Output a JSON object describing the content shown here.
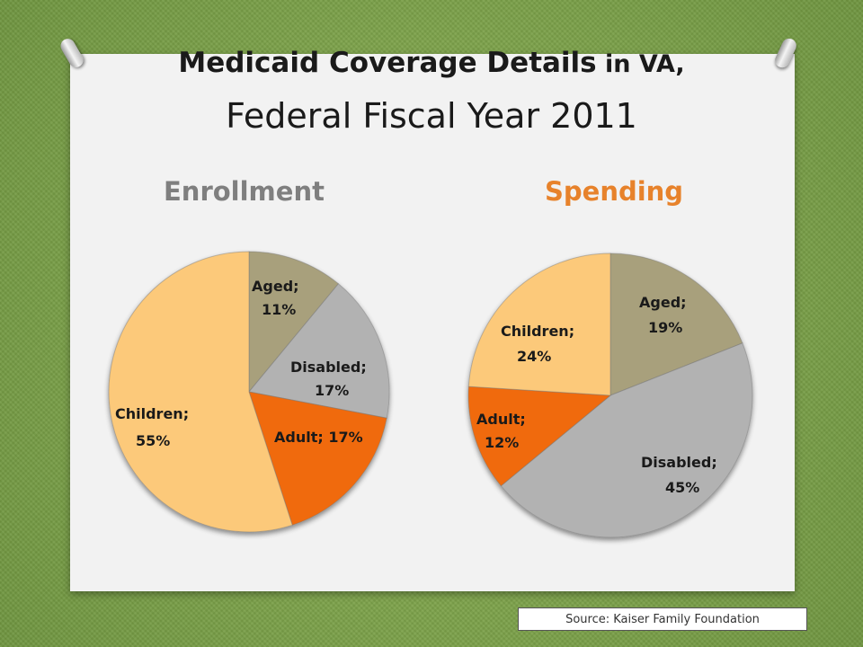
{
  "title": {
    "line1_bold": "Medicaid Coverage Details",
    "line1_small": " in VA,",
    "line2": "Federal Fiscal Year 2011"
  },
  "source": "Source: Kaiser Family Foundation",
  "colors": {
    "aged": "#a8a07c",
    "disabled": "#b2b2b2",
    "adult": "#f06a0a",
    "children": "#fcc97a",
    "enrollment_title": "#7f7f7f",
    "spending_title": "#e7822b"
  },
  "chart_data": [
    {
      "type": "pie",
      "title": "Enrollment",
      "slices": [
        {
          "label": "Aged",
          "value": 11,
          "text_line1": "Aged;",
          "text_line2": "11%",
          "color": "#a8a07c"
        },
        {
          "label": "Disabled",
          "value": 17,
          "text_line1": "Disabled;",
          "text_line2": "17%",
          "color": "#b2b2b2"
        },
        {
          "label": "Adult",
          "value": 17,
          "text_line1": "Adult; 17%",
          "text_line2": "",
          "color": "#f06a0a"
        },
        {
          "label": "Children",
          "value": 55,
          "text_line1": "Children;",
          "text_line2": "55%",
          "color": "#fcc97a"
        }
      ]
    },
    {
      "type": "pie",
      "title": "Spending",
      "slices": [
        {
          "label": "Aged",
          "value": 19,
          "text_line1": "Aged;",
          "text_line2": "19%",
          "color": "#a8a07c"
        },
        {
          "label": "Disabled",
          "value": 45,
          "text_line1": "Disabled;",
          "text_line2": "45%",
          "color": "#b2b2b2"
        },
        {
          "label": "Adult",
          "value": 12,
          "text_line1": "Adult;",
          "text_line2": "12%",
          "color": "#f06a0a"
        },
        {
          "label": "Children",
          "value": 24,
          "text_line1": "Children;",
          "text_line2": "24%",
          "color": "#fcc97a"
        }
      ]
    }
  ]
}
